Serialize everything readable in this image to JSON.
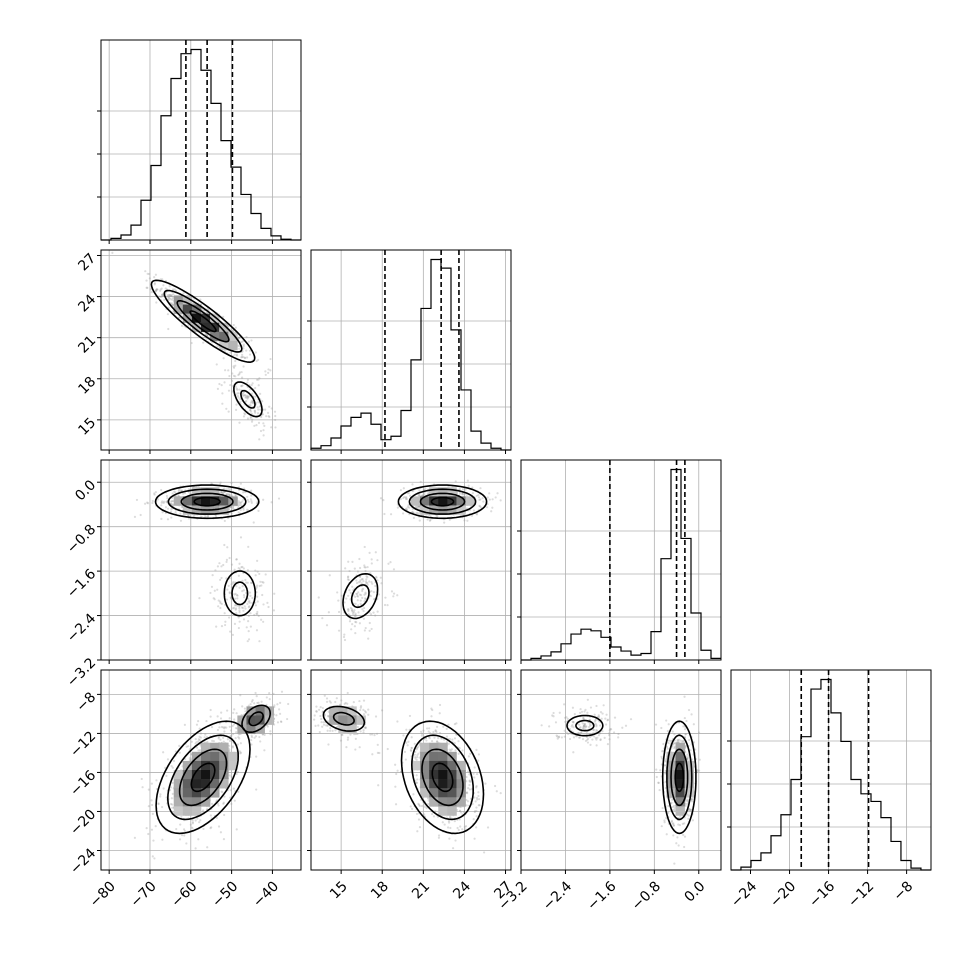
{
  "chart_data": {
    "type": "corner",
    "parameters": [
      {
        "id": "p0",
        "range": [
          -82,
          -33
        ],
        "ticks": [
          -80,
          -70,
          -60,
          -50,
          -40
        ],
        "tick_labels": [
          "−80",
          "−70",
          "−60",
          "−50",
          "−40"
        ]
      },
      {
        "id": "p1",
        "range": [
          12.8,
          27.4
        ],
        "ticks": [
          15,
          18,
          21,
          24,
          27
        ],
        "tick_labels": [
          "15",
          "18",
          "21",
          "24",
          "27"
        ]
      },
      {
        "id": "p2",
        "range": [
          -3.2,
          0.4
        ],
        "ticks": [
          -3.2,
          -2.4,
          -1.6,
          -0.8,
          0.0
        ],
        "tick_labels": [
          "−3.2",
          "−2.4",
          "−1.6",
          "−0.8",
          "0.0"
        ]
      },
      {
        "id": "p3",
        "range": [
          -26,
          -5.5
        ],
        "ticks": [
          -24,
          -20,
          -16,
          -12,
          -8
        ],
        "tick_labels": [
          "−24",
          "−20",
          "−16",
          "−12",
          "−8"
        ]
      }
    ],
    "histograms": [
      {
        "param": 0,
        "bin_edges": [
          -82,
          -79.55,
          -77.1,
          -74.65,
          -72.2,
          -69.75,
          -67.3,
          -64.85,
          -62.4,
          -59.95,
          -57.5,
          -55.05,
          -52.6,
          -50.15,
          -47.7,
          -45.25,
          -42.8,
          -40.35,
          -37.9,
          -35.45,
          -33
        ],
        "counts": [
          0,
          2,
          6,
          18,
          48,
          90,
          150,
          195,
          225,
          230,
          205,
          165,
          120,
          88,
          55,
          32,
          14,
          5,
          1,
          0
        ],
        "quantiles": [
          -61.2,
          -56,
          -49.8
        ]
      },
      {
        "param": 1,
        "bin_edges": [
          12.8,
          13.53,
          14.26,
          14.99,
          15.72,
          16.45,
          17.18,
          17.91,
          18.64,
          19.37,
          20.1,
          20.83,
          21.56,
          22.29,
          23.02,
          23.75,
          24.48,
          25.21,
          25.94,
          26.67,
          27.4
        ],
        "counts": [
          2,
          5,
          14,
          28,
          38,
          43,
          30,
          12,
          16,
          46,
          105,
          165,
          222,
          212,
          140,
          70,
          22,
          8,
          2,
          0
        ],
        "quantiles": [
          18.2,
          22.3,
          23.6
        ]
      },
      {
        "param": 2,
        "bin_edges": [
          -3.2,
          -3.02,
          -2.84,
          -2.66,
          -2.48,
          -2.3,
          -2.12,
          -1.94,
          -1.76,
          -1.58,
          -1.4,
          -1.22,
          -1.04,
          -0.86,
          -0.68,
          -0.5,
          -0.32,
          -0.14,
          0.04,
          0.22,
          0.4
        ],
        "counts": [
          0,
          2,
          5,
          10,
          20,
          32,
          38,
          36,
          28,
          16,
          11,
          6,
          8,
          35,
          125,
          235,
          150,
          58,
          12,
          2
        ],
        "quantiles": [
          -1.6,
          -0.4,
          -0.25
        ]
      },
      {
        "param": 3,
        "bin_edges": [
          -26,
          -24.98,
          -23.95,
          -22.93,
          -21.9,
          -20.88,
          -19.85,
          -18.83,
          -17.8,
          -16.78,
          -15.75,
          -14.73,
          -13.7,
          -12.68,
          -11.65,
          -10.63,
          -9.6,
          -8.58,
          -7.55,
          -6.53,
          -5.5
        ],
        "counts": [
          0,
          3,
          10,
          18,
          36,
          58,
          95,
          140,
          190,
          200,
          165,
          135,
          95,
          80,
          72,
          55,
          30,
          10,
          2,
          0
        ],
        "quantiles": [
          -18.8,
          -16,
          -11.9
        ]
      }
    ],
    "joint": [
      {
        "x": 0,
        "y": 1,
        "components": [
          {
            "mean": [
              -57,
              22.2
            ],
            "sd": [
              5.5,
              1.3
            ],
            "corr": -0.9,
            "weight": 0.8
          },
          {
            "mean": [
              -46,
              16.5
            ],
            "sd": [
              3,
              1.1
            ],
            "corr": -0.6,
            "weight": 0.2
          }
        ]
      },
      {
        "x": 0,
        "y": 2,
        "components": [
          {
            "mean": [
              -56,
              -0.35
            ],
            "sd": [
              5.5,
              0.13
            ],
            "corr": 0,
            "weight": 0.8
          },
          {
            "mean": [
              -48,
              -2.0
            ],
            "sd": [
              3.3,
              0.35
            ],
            "corr": 0,
            "weight": 0.2
          }
        ]
      },
      {
        "x": 1,
        "y": 2,
        "components": [
          {
            "mean": [
              22.4,
              -0.35
            ],
            "sd": [
              1.4,
              0.13
            ],
            "corr": 0,
            "weight": 0.8
          },
          {
            "mean": [
              16.4,
              -2.05
            ],
            "sd": [
              1.1,
              0.35
            ],
            "corr": 0.3,
            "weight": 0.2
          }
        ]
      },
      {
        "x": 0,
        "y": 3,
        "components": [
          {
            "mean": [
              -57,
              -16.5
            ],
            "sd": [
              5,
              2.5
            ],
            "corr": 0.5,
            "weight": 0.8
          },
          {
            "mean": [
              -44,
              -10.5
            ],
            "sd": [
              3,
              1.2
            ],
            "corr": 0.4,
            "weight": 0.2
          }
        ]
      },
      {
        "x": 1,
        "y": 3,
        "components": [
          {
            "mean": [
              22.4,
              -16.5
            ],
            "sd": [
              1.3,
              2.5
            ],
            "corr": -0.3,
            "weight": 0.8
          },
          {
            "mean": [
              15.2,
              -10.5
            ],
            "sd": [
              1.3,
              1.1
            ],
            "corr": -0.3,
            "weight": 0.2
          }
        ]
      },
      {
        "x": 2,
        "y": 3,
        "components": [
          {
            "mean": [
              -0.35,
              -16.5
            ],
            "sd": [
              0.13,
              2.5
            ],
            "corr": 0,
            "weight": 0.8
          },
          {
            "mean": [
              -2.05,
              -11.2
            ],
            "sd": [
              0.28,
              0.9
            ],
            "corr": 0,
            "weight": 0.2
          }
        ]
      }
    ],
    "contour_levels_sigma": [
      0.5,
      1.0,
      1.5,
      2.0
    ],
    "grid": true,
    "colors": {
      "line": "#000000",
      "grid": "#b0b0b0",
      "scatter": "#9a9a9a",
      "density_max": "#000000"
    }
  }
}
